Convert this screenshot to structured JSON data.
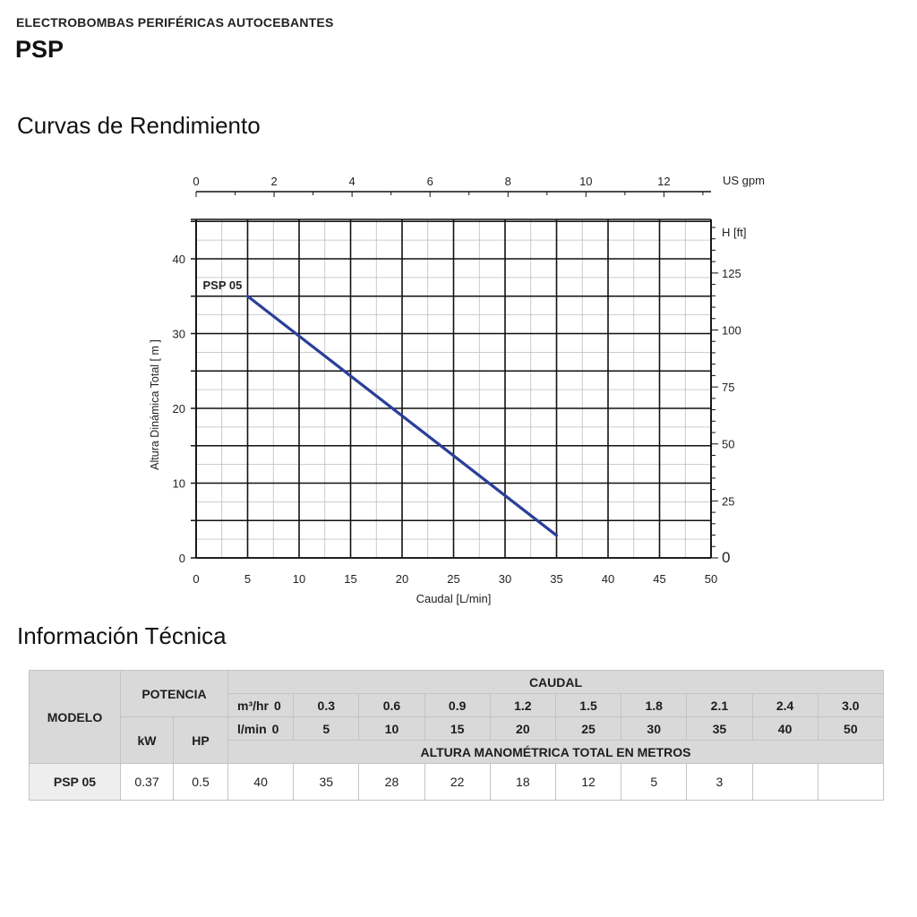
{
  "header": {
    "category": "ELECTROBOMBAS PERIFÉRICAS AUTOCEBANTES",
    "model": "PSP"
  },
  "performance_section": {
    "title": "Curvas de Rendimiento"
  },
  "chart_data": {
    "type": "line",
    "series": [
      {
        "name": "PSP 05",
        "x": [
          5,
          35
        ],
        "y": [
          35,
          3
        ],
        "color": "#2a3f9a"
      }
    ],
    "xlabel": "Caudal [L/min]",
    "ylabel": "Altura Dinámica Total  [ m ]",
    "xlim": [
      0,
      50
    ],
    "ylim": [
      0,
      45
    ],
    "x_ticks": [
      0,
      5,
      10,
      15,
      20,
      25,
      30,
      35,
      40,
      45,
      50
    ],
    "y_ticks": [
      0,
      10,
      20,
      30,
      40
    ],
    "top_axis": {
      "label": "US gpm",
      "ticks": [
        "0",
        "2",
        "4",
        "6",
        "8",
        "10",
        "12"
      ],
      "scale_per_lpm": 0.264172
    },
    "right_axis": {
      "label": "H [ft]",
      "ticks": [
        "0",
        "25",
        "50",
        "75",
        "100",
        "125"
      ],
      "scale_per_m": 3.28084
    },
    "grid": true
  },
  "info_section": {
    "title": "Información Técnica"
  },
  "table": {
    "model_header": "MODELO",
    "power_header": "POTENCIA",
    "kw_header": "kW",
    "hp_header": "HP",
    "flow_header": "CAUDAL",
    "m3hr_label": "m³/hr",
    "lmin_label": "l/min",
    "m3hr_values": [
      "0",
      "0.3",
      "0.6",
      "0.9",
      "1.2",
      "1.5",
      "1.8",
      "2.1",
      "2.4",
      "3.0"
    ],
    "lmin_values": [
      "0",
      "5",
      "10",
      "15",
      "20",
      "25",
      "30",
      "35",
      "40",
      "50"
    ],
    "head_header": "ALTURA MANOMÉTRICA TOTAL EN METROS",
    "rows": [
      {
        "model": "PSP 05",
        "kw": "0.37",
        "hp": "0.5",
        "heads": [
          "40",
          "35",
          "28",
          "22",
          "18",
          "12",
          "5",
          "3",
          "",
          ""
        ]
      }
    ]
  }
}
